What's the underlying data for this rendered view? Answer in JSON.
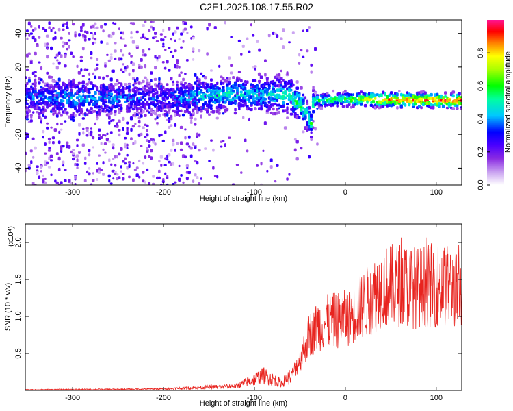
{
  "title": "C2E1.2025.108.17.55.R02",
  "chart_data": [
    {
      "type": "heatmap",
      "title": "C2E1.2025.108.17.55.R02",
      "xlabel": "Height of straight line (km)",
      "ylabel": "Frequency (Hz)",
      "xlim": [
        -352,
        128
      ],
      "ylim": [
        -50,
        48
      ],
      "xticks": [
        -300,
        -200,
        -100,
        0,
        100
      ],
      "yticks": [
        -40,
        -20,
        0,
        20,
        40
      ],
      "colorbar": {
        "label": "Normalized spectral amplitude",
        "range": [
          0,
          1
        ],
        "ticks": [
          0.0,
          0.2,
          0.4,
          0.6,
          0.8
        ],
        "tick_labels": [
          "0.0",
          "0.2",
          "0.4",
          "0.6",
          "0.8"
        ],
        "colormap": [
          "#ffffff",
          "#8a2be2",
          "#0000ff",
          "#00ffff",
          "#00ff00",
          "#ffff00",
          "#ff0000",
          "#ff1493"
        ]
      },
      "frequency_band_center": [
        {
          "x": -352,
          "y": 2
        },
        {
          "x": -200,
          "y": 1
        },
        {
          "x": -120,
          "y": 4
        },
        {
          "x": -60,
          "y": 3
        },
        {
          "x": -45,
          "y": -5
        },
        {
          "x": -37,
          "y": -14
        },
        {
          "x": -35,
          "y": 0
        },
        {
          "x": 0,
          "y": 1
        },
        {
          "x": 128,
          "y": 0
        }
      ],
      "peak_amplitude_by_height": [
        {
          "x": -352,
          "v": 0.35
        },
        {
          "x": -290,
          "v": 0.45
        },
        {
          "x": -200,
          "v": 0.3
        },
        {
          "x": -180,
          "v": 0.4
        },
        {
          "x": -130,
          "v": 0.5
        },
        {
          "x": -100,
          "v": 0.45
        },
        {
          "x": -50,
          "v": 0.55
        },
        {
          "x": -30,
          "v": 0.55
        },
        {
          "x": 0,
          "v": 0.6
        },
        {
          "x": 40,
          "v": 0.9
        },
        {
          "x": 128,
          "v": 0.9
        }
      ]
    },
    {
      "type": "line",
      "xlabel": "Height of straight line (km)",
      "ylabel": "SNR (10 * v/v)",
      "y_multiplier": "(x10⁴)",
      "xlim": [
        -352,
        128
      ],
      "ylim": [
        0,
        2.25
      ],
      "xticks": [
        -300,
        -200,
        -100,
        0,
        100
      ],
      "yticks": [
        0.5,
        1.0,
        1.5,
        2.0
      ],
      "ytick_labels": [
        "0.5",
        "1.0",
        "1.5",
        "2.0"
      ],
      "color": "#e8241f",
      "series_envelope": [
        {
          "x": -352,
          "y": 0.01
        },
        {
          "x": -250,
          "y": 0.015
        },
        {
          "x": -200,
          "y": 0.02
        },
        {
          "x": -160,
          "y": 0.04
        },
        {
          "x": -120,
          "y": 0.06
        },
        {
          "x": -100,
          "y": 0.15
        },
        {
          "x": -90,
          "y": 0.2
        },
        {
          "x": -70,
          "y": 0.1
        },
        {
          "x": -60,
          "y": 0.2
        },
        {
          "x": -50,
          "y": 0.45
        },
        {
          "x": -40,
          "y": 0.8
        },
        {
          "x": -30,
          "y": 0.95
        },
        {
          "x": -20,
          "y": 1.0
        },
        {
          "x": 0,
          "y": 1.05
        },
        {
          "x": 20,
          "y": 1.25
        },
        {
          "x": 40,
          "y": 1.5
        },
        {
          "x": 60,
          "y": 1.55
        },
        {
          "x": 80,
          "y": 1.5
        },
        {
          "x": 100,
          "y": 1.55
        },
        {
          "x": 120,
          "y": 1.5
        },
        {
          "x": 128,
          "y": 1.3
        }
      ]
    }
  ]
}
